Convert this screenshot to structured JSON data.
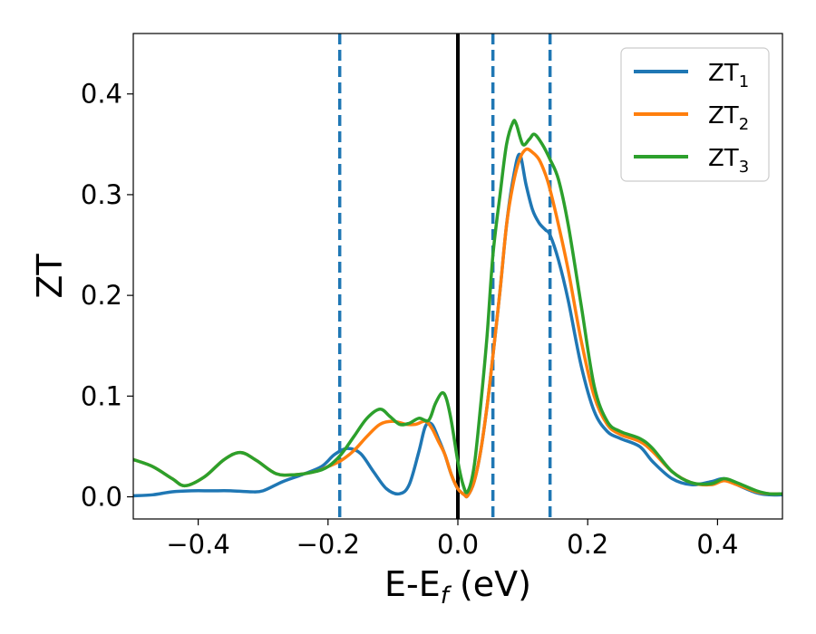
{
  "chart_data": {
    "type": "line",
    "title": "",
    "xlabel_main": "E-E",
    "xlabel_sub": "f",
    "xlabel_tail": " (eV)",
    "ylabel": "ZT",
    "xlim": [
      -0.5,
      0.5
    ],
    "ylim": [
      -0.022,
      0.46
    ],
    "xticks": [
      -0.4,
      -0.2,
      0.0,
      0.2,
      0.4
    ],
    "xtick_labels": [
      "−0.4",
      "−0.2",
      "0.0",
      "0.2",
      "0.4"
    ],
    "yticks": [
      0.0,
      0.1,
      0.2,
      0.3,
      0.4
    ],
    "ytick_labels": [
      "0.0",
      "0.1",
      "0.2",
      "0.3",
      "0.4"
    ],
    "grid": false,
    "legend_position": "top-right",
    "vertical_lines": [
      {
        "x": -0.182,
        "style": "dashed",
        "color": "#1f77b4"
      },
      {
        "x": 0.0,
        "style": "solid",
        "color": "#000000"
      },
      {
        "x": 0.054,
        "style": "dashed",
        "color": "#1f77b4"
      },
      {
        "x": 0.142,
        "style": "dashed",
        "color": "#1f77b4"
      }
    ],
    "series": [
      {
        "name": "ZT",
        "subscript": "1",
        "color": "#1f77b4",
        "x": [
          -0.5,
          -0.47,
          -0.44,
          -0.41,
          -0.38,
          -0.35,
          -0.32,
          -0.3,
          -0.27,
          -0.24,
          -0.21,
          -0.19,
          -0.17,
          -0.15,
          -0.13,
          -0.11,
          -0.09,
          -0.075,
          -0.06,
          -0.05,
          -0.04,
          -0.03,
          -0.02,
          -0.01,
          0.0,
          0.01,
          0.015,
          0.025,
          0.035,
          0.045,
          0.054,
          0.065,
          0.075,
          0.085,
          0.095,
          0.105,
          0.115,
          0.125,
          0.135,
          0.142,
          0.155,
          0.17,
          0.19,
          0.21,
          0.23,
          0.25,
          0.28,
          0.3,
          0.33,
          0.36,
          0.39,
          0.41,
          0.43,
          0.46,
          0.48,
          0.5
        ],
        "y": [
          0.001,
          0.002,
          0.005,
          0.006,
          0.006,
          0.006,
          0.005,
          0.006,
          0.015,
          0.022,
          0.03,
          0.042,
          0.048,
          0.043,
          0.025,
          0.008,
          0.003,
          0.012,
          0.045,
          0.07,
          0.072,
          0.058,
          0.042,
          0.022,
          0.008,
          0.002,
          0.001,
          0.015,
          0.045,
          0.09,
          0.14,
          0.205,
          0.27,
          0.315,
          0.34,
          0.31,
          0.285,
          0.272,
          0.265,
          0.26,
          0.235,
          0.195,
          0.13,
          0.085,
          0.065,
          0.058,
          0.05,
          0.035,
          0.018,
          0.012,
          0.015,
          0.018,
          0.012,
          0.004,
          0.002,
          0.002
        ]
      },
      {
        "name": "ZT",
        "subscript": "2",
        "color": "#ff7f0e",
        "x": [
          -0.5,
          -0.47,
          -0.44,
          -0.42,
          -0.39,
          -0.36,
          -0.335,
          -0.31,
          -0.28,
          -0.25,
          -0.22,
          -0.2,
          -0.18,
          -0.16,
          -0.14,
          -0.12,
          -0.1,
          -0.08,
          -0.065,
          -0.05,
          -0.04,
          -0.03,
          -0.02,
          -0.01,
          0.0,
          0.01,
          0.015,
          0.025,
          0.035,
          0.045,
          0.054,
          0.065,
          0.075,
          0.085,
          0.095,
          0.105,
          0.115,
          0.125,
          0.135,
          0.142,
          0.155,
          0.17,
          0.19,
          0.21,
          0.23,
          0.25,
          0.28,
          0.3,
          0.33,
          0.36,
          0.39,
          0.41,
          0.43,
          0.46,
          0.48,
          0.5
        ],
        "y": [
          0.037,
          0.03,
          0.018,
          0.011,
          0.02,
          0.037,
          0.044,
          0.036,
          0.023,
          0.022,
          0.025,
          0.03,
          0.036,
          0.046,
          0.06,
          0.072,
          0.075,
          0.072,
          0.072,
          0.075,
          0.068,
          0.055,
          0.042,
          0.022,
          0.008,
          0.002,
          0.001,
          0.015,
          0.045,
          0.09,
          0.14,
          0.205,
          0.27,
          0.31,
          0.335,
          0.345,
          0.342,
          0.335,
          0.32,
          0.305,
          0.27,
          0.225,
          0.155,
          0.1,
          0.072,
          0.062,
          0.055,
          0.045,
          0.025,
          0.014,
          0.012,
          0.016,
          0.012,
          0.005,
          0.003,
          0.003
        ]
      },
      {
        "name": "ZT",
        "subscript": "3",
        "color": "#2ca02c",
        "x": [
          -0.5,
          -0.47,
          -0.44,
          -0.42,
          -0.39,
          -0.36,
          -0.335,
          -0.31,
          -0.28,
          -0.25,
          -0.22,
          -0.2,
          -0.18,
          -0.16,
          -0.14,
          -0.12,
          -0.105,
          -0.09,
          -0.075,
          -0.06,
          -0.045,
          -0.035,
          -0.025,
          -0.018,
          -0.01,
          0.0,
          0.008,
          0.015,
          0.025,
          0.035,
          0.045,
          0.054,
          0.065,
          0.075,
          0.085,
          0.09,
          0.1,
          0.11,
          0.118,
          0.13,
          0.142,
          0.155,
          0.17,
          0.19,
          0.21,
          0.23,
          0.25,
          0.28,
          0.3,
          0.33,
          0.36,
          0.39,
          0.41,
          0.43,
          0.46,
          0.48,
          0.5
        ],
        "y": [
          0.037,
          0.03,
          0.018,
          0.011,
          0.02,
          0.037,
          0.044,
          0.036,
          0.023,
          0.022,
          0.025,
          0.03,
          0.042,
          0.06,
          0.078,
          0.087,
          0.08,
          0.072,
          0.073,
          0.078,
          0.076,
          0.092,
          0.103,
          0.098,
          0.075,
          0.035,
          0.012,
          0.005,
          0.03,
          0.09,
          0.16,
          0.24,
          0.3,
          0.35,
          0.372,
          0.37,
          0.35,
          0.355,
          0.36,
          0.35,
          0.335,
          0.315,
          0.27,
          0.19,
          0.11,
          0.075,
          0.065,
          0.058,
          0.048,
          0.025,
          0.014,
          0.013,
          0.018,
          0.014,
          0.006,
          0.003,
          0.003
        ]
      }
    ]
  }
}
